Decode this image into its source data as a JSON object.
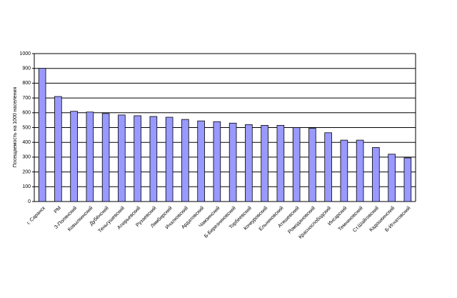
{
  "chart_data": {
    "type": "bar",
    "y_label": "Посещаемость на 1000 населения",
    "categories": [
      "г. Саранск",
      "РМ",
      "З-Полянский",
      "Ковылкинский",
      "Дубёнский",
      "Теньгушевский",
      "Атюрьевский",
      "Рузаевский",
      "Лямбирский",
      "Ичалковский",
      "Ардатовский",
      "Чамзинский",
      "Б-Березниковский",
      "Торбеевский",
      "Кочкуровский",
      "Ельниковский",
      "Атяшевский",
      "Ромодановский",
      "Краснослободский",
      "Инсарский",
      "Темниковский",
      "Ст.Шайговский",
      "Кадошкинский",
      "Б-Игнатовский"
    ],
    "values": [
      900,
      710,
      610,
      605,
      595,
      585,
      580,
      575,
      570,
      555,
      545,
      540,
      530,
      520,
      515,
      515,
      500,
      495,
      465,
      415,
      415,
      365,
      320,
      295
    ],
    "color": "#9999ff",
    "ylim": [
      0,
      1000
    ],
    "yticks": [
      0,
      100,
      200,
      300,
      400,
      500,
      600,
      700,
      800,
      900,
      1000
    ],
    "grid": true
  }
}
